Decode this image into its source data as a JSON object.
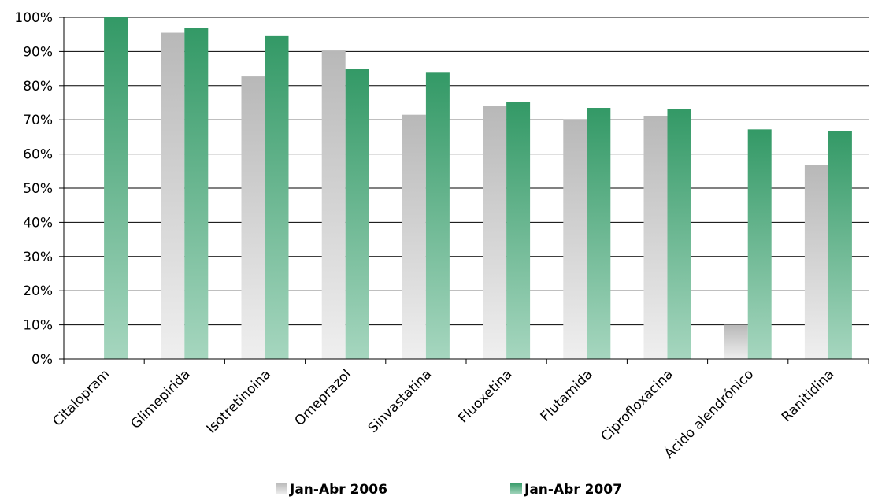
{
  "chart_data": {
    "type": "bar",
    "title": "",
    "xlabel": "",
    "ylabel": "",
    "ylim": [
      0,
      100
    ],
    "y_ticks": [
      "0%",
      "10%",
      "20%",
      "30%",
      "40%",
      "50%",
      "60%",
      "70%",
      "80%",
      "90%",
      "100%"
    ],
    "grid": true,
    "legend_position": "bottom",
    "categories": [
      "Citalopram",
      "Glimepirida",
      "Isotretinoina",
      "Omeprazol",
      "Sinvastatina",
      "Fluoxetina",
      "Flutamida",
      "Ciprofloxacina",
      "Ácido alendrónico",
      "Ranitidina"
    ],
    "series": [
      {
        "name": "Jan-Abr 2006",
        "values": [
          0,
          95.5,
          82.7,
          90.3,
          71.5,
          74.0,
          70.1,
          71.2,
          10.0,
          56.7
        ]
      },
      {
        "name": "Jan-Abr 2007",
        "values": [
          100,
          96.8,
          94.5,
          84.9,
          83.8,
          75.3,
          73.5,
          73.2,
          67.2,
          66.7
        ]
      }
    ],
    "colors": {
      "series_2006_top": "#b8b8b8",
      "series_2006_bottom": "#efefef",
      "series_2007_top": "#339966",
      "series_2007_bottom": "#a6d6bf",
      "grid": "#000000"
    }
  }
}
